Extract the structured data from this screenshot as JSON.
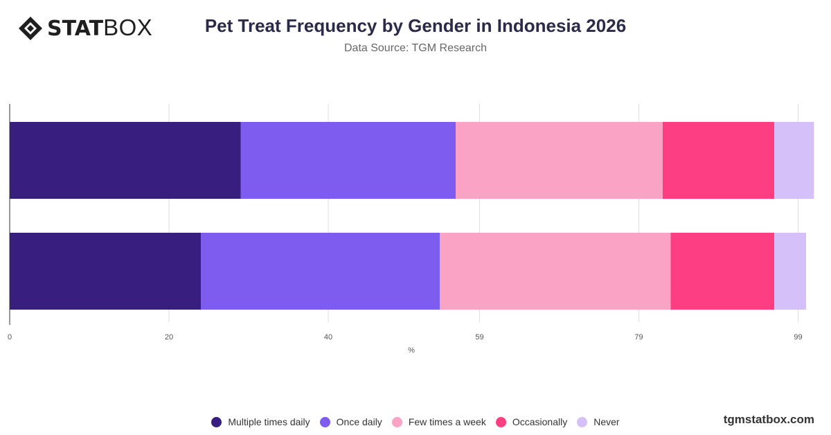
{
  "brand": {
    "logo_bold": "STAT",
    "logo_light": "BOX"
  },
  "header": {
    "title": "Pet Treat Frequency by Gender in Indonesia 2026",
    "subtitle": "Data Source: TGM Research"
  },
  "watermark": "tgmstatbox.com",
  "chart_data": {
    "type": "bar",
    "orientation": "horizontal",
    "stacked": true,
    "categories": [
      "",
      ""
    ],
    "series": [
      {
        "name": "Multiple times daily",
        "color": "#371e7f",
        "values": [
          29,
          24
        ]
      },
      {
        "name": "Once daily",
        "color": "#7d5cef",
        "values": [
          27,
          30
        ]
      },
      {
        "name": "Few times a week",
        "color": "#fba3c4",
        "values": [
          26,
          29
        ]
      },
      {
        "name": "Occasionally",
        "color": "#fe3e82",
        "values": [
          14,
          13
        ]
      },
      {
        "name": "Never",
        "color": "#d5c0fa",
        "values": [
          5,
          4
        ]
      }
    ],
    "x_ticks": [
      "0",
      "20",
      "40",
      "59",
      "79",
      "99"
    ],
    "xlabel": "%",
    "xlim": [
      0,
      101
    ],
    "grid": true,
    "legend_position": "bottom"
  }
}
